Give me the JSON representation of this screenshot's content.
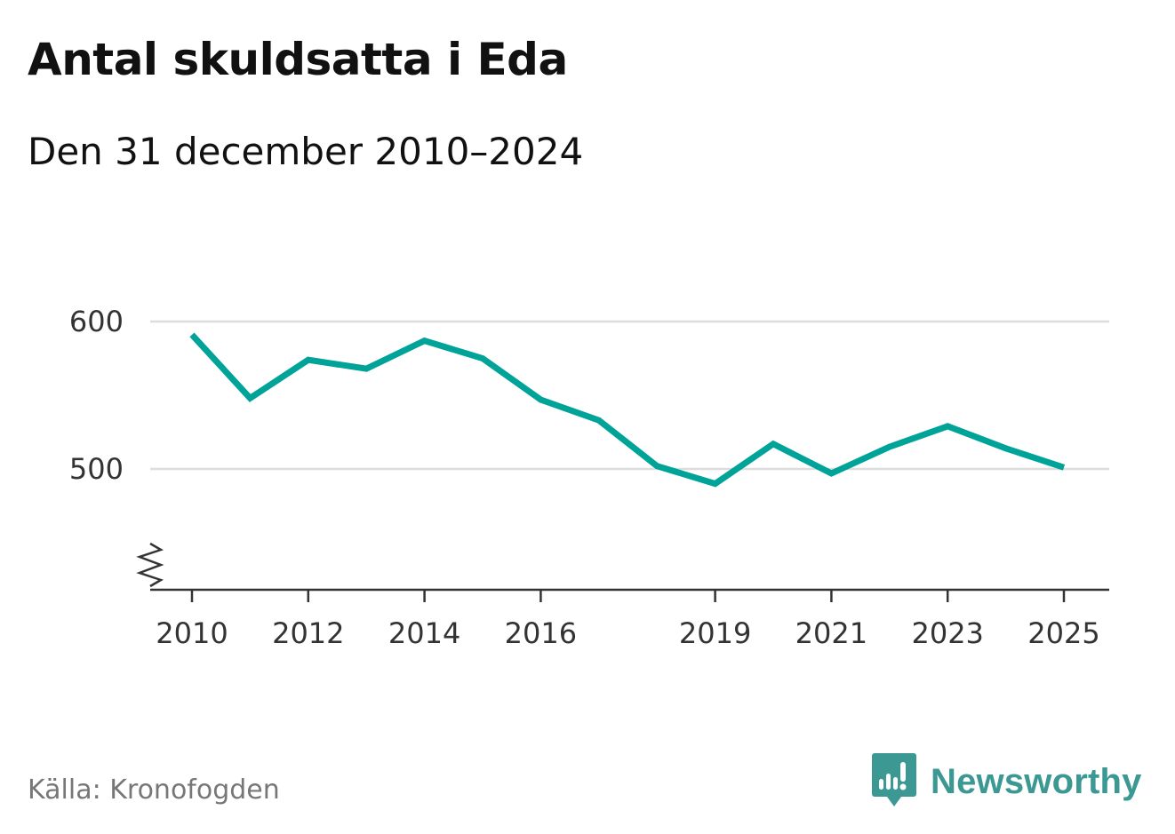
{
  "title": "Antal skuldsatta i Eda",
  "subtitle": "Den 31 december 2010–2024",
  "source": "Källa: Kronofogden",
  "brand": {
    "name": "Newsworthy",
    "icon": "newsworthy-logo-icon",
    "color": "#3b9892"
  },
  "chart_data": {
    "type": "line",
    "title": "Antal skuldsatta i Eda",
    "subtitle": "Den 31 december 2010–2024",
    "x_unit": "year",
    "x_ticks": [
      2010,
      2012,
      2014,
      2016,
      2019,
      2021,
      2023,
      2025
    ],
    "x_tick_labels": [
      "2010",
      "2012",
      "2014",
      "2016",
      "2019",
      "2021",
      "2023",
      "2025"
    ],
    "xlim": [
      2010,
      2025
    ],
    "y_ticks": [
      500,
      600
    ],
    "y_tick_labels": [
      "500",
      "600"
    ],
    "ylim": [
      415,
      600
    ],
    "y_axis_break": true,
    "grid": "horizontal",
    "series": [
      {
        "color": "#00a398",
        "points": [
          {
            "x": 2010,
            "y": 591
          },
          {
            "x": 2011,
            "y": 548
          },
          {
            "x": 2012,
            "y": 574
          },
          {
            "x": 2013,
            "y": 568
          },
          {
            "x": 2014,
            "y": 587
          },
          {
            "x": 2015,
            "y": 575
          },
          {
            "x": 2016,
            "y": 547
          },
          {
            "x": 2017,
            "y": 533
          },
          {
            "x": 2018,
            "y": 502
          },
          {
            "x": 2019,
            "y": 490
          },
          {
            "x": 2020,
            "y": 517
          },
          {
            "x": 2021,
            "y": 497
          },
          {
            "x": 2022,
            "y": 515
          },
          {
            "x": 2023,
            "y": 529
          },
          {
            "x": 2024,
            "y": 514
          },
          {
            "x": 2025,
            "y": 501
          }
        ]
      }
    ]
  }
}
